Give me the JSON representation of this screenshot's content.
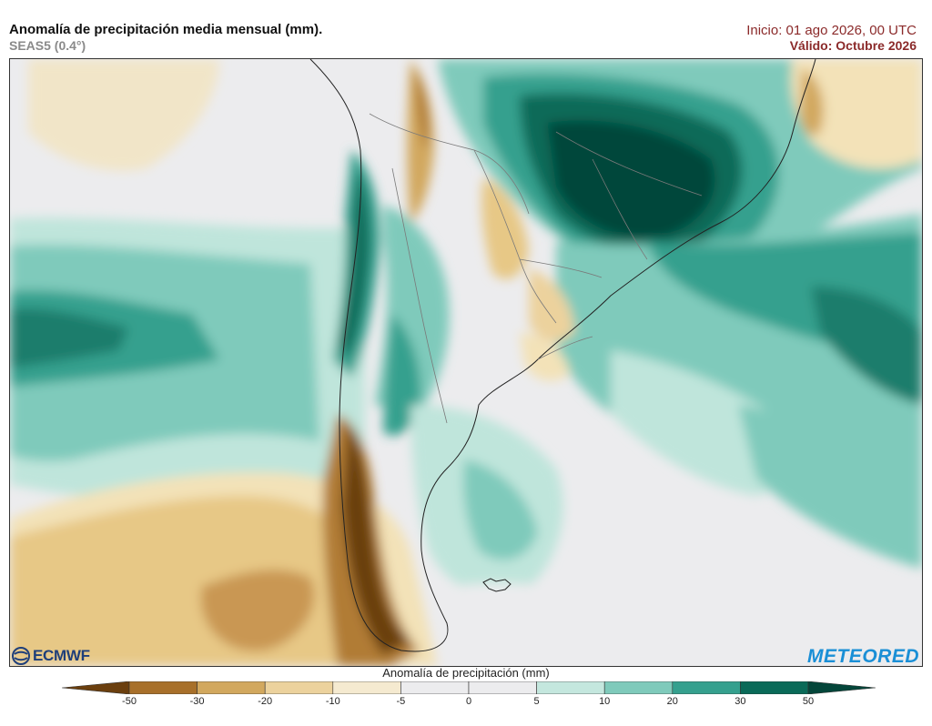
{
  "header": {
    "title": "Anomalía de precipitación media mensual (mm).",
    "subtitle": "SEAS5 (0.4°)",
    "init": "Inicio: 01 ago 2026, 00 UTC",
    "valid": "Válido: Octubre 2026"
  },
  "logos": {
    "left": "ECMWF",
    "right": "METEORED"
  },
  "colorbar": {
    "title": "Anomalía de precipitación (mm)",
    "ticks": [
      "-50",
      "-30",
      "-20",
      "-10",
      "-5",
      "0",
      "5",
      "10",
      "20",
      "30",
      "50"
    ],
    "colors": [
      "#6b3f0e",
      "#a8702a",
      "#d2a85e",
      "#ecd29d",
      "#f5ead0",
      "#ececee",
      "#ececee",
      "#c4e7de",
      "#7fcabb",
      "#35a08e",
      "#0a6a58",
      "#04463a"
    ]
  },
  "colors": {
    "ocean_neutral": "#ececee",
    "dry_strong": "#8c5a1f",
    "wet_strong": "#04463a",
    "brand_meteored": "#1a8fd6",
    "header_red": "#8b2a2a"
  }
}
